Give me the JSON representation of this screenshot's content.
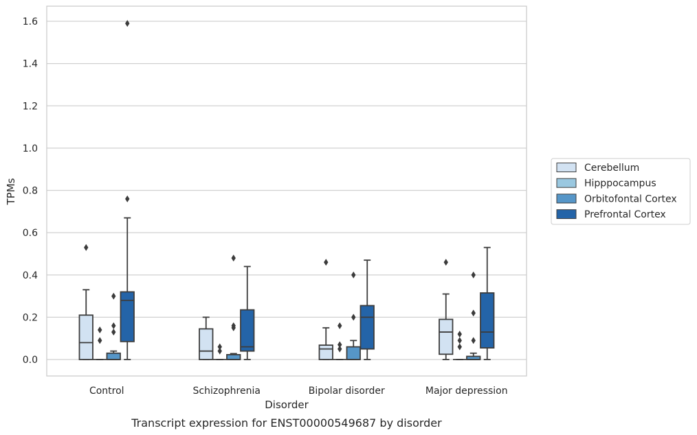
{
  "caption": "Transcript expression for ENST00000549687 by disorder",
  "chart_data": {
    "type": "box",
    "title": "",
    "xlabel": "Disorder",
    "ylabel": "TPMs",
    "ylim": [
      -0.08,
      1.67
    ],
    "yticks": [
      0.0,
      0.2,
      0.4,
      0.6,
      0.8,
      1.0,
      1.2,
      1.4,
      1.6
    ],
    "ytick_labels": [
      "0.0",
      "0.2",
      "0.4",
      "0.6",
      "0.8",
      "1.0",
      "1.2",
      "1.4",
      "1.6"
    ],
    "grid": "horizontal",
    "legend_position": "right",
    "categories": [
      "Control",
      "Schizophrenia",
      "Bipolar disorder",
      "Major depression"
    ],
    "series": [
      {
        "name": "Cerebellum",
        "color": "#d2e2f2",
        "boxes": [
          {
            "whislo": 0.0,
            "q1": 0.0,
            "med": 0.08,
            "q3": 0.21,
            "whishi": 0.33,
            "fliers": [
              0.53
            ]
          },
          {
            "whislo": 0.0,
            "q1": 0.0,
            "med": 0.04,
            "q3": 0.145,
            "whishi": 0.2,
            "fliers": []
          },
          {
            "whislo": 0.0,
            "q1": 0.0,
            "med": 0.05,
            "q3": 0.068,
            "whishi": 0.15,
            "fliers": [
              0.46
            ]
          },
          {
            "whislo": 0.0,
            "q1": 0.025,
            "med": 0.13,
            "q3": 0.19,
            "whishi": 0.31,
            "fliers": [
              0.46
            ]
          }
        ]
      },
      {
        "name": "Hipppocampus",
        "color": "#9ac8e0",
        "boxes": [
          {
            "whislo": 0.0,
            "q1": 0.0,
            "med": 0.0,
            "q3": 0.0,
            "whishi": 0.0,
            "fliers": [
              0.09,
              0.14
            ]
          },
          {
            "whislo": 0.0,
            "q1": 0.0,
            "med": 0.0,
            "q3": 0.0,
            "whishi": 0.0,
            "fliers": [
              0.04,
              0.06
            ]
          },
          {
            "whislo": 0.0,
            "q1": 0.0,
            "med": 0.0,
            "q3": 0.0,
            "whishi": 0.0,
            "fliers": [
              0.05,
              0.07,
              0.16
            ]
          },
          {
            "whislo": 0.0,
            "q1": 0.0,
            "med": 0.0,
            "q3": 0.0,
            "whishi": 0.0,
            "fliers": [
              0.06,
              0.09,
              0.12
            ]
          }
        ]
      },
      {
        "name": "Orbitofontal Cortex",
        "color": "#5696c8",
        "boxes": [
          {
            "whislo": 0.0,
            "q1": 0.0,
            "med": 0.0,
            "q3": 0.03,
            "whishi": 0.04,
            "fliers": [
              0.13,
              0.16,
              0.3
            ]
          },
          {
            "whislo": 0.0,
            "q1": 0.0,
            "med": 0.0,
            "q3": 0.023,
            "whishi": 0.028,
            "fliers": [
              0.15,
              0.16,
              0.48
            ]
          },
          {
            "whislo": 0.0,
            "q1": 0.0,
            "med": 0.0,
            "q3": 0.06,
            "whishi": 0.09,
            "fliers": [
              0.2,
              0.4
            ]
          },
          {
            "whislo": 0.0,
            "q1": 0.0,
            "med": 0.0,
            "q3": 0.015,
            "whishi": 0.03,
            "fliers": [
              0.09,
              0.22,
              0.4
            ]
          }
        ]
      },
      {
        "name": "Prefrontal Cortex",
        "color": "#2464a8",
        "boxes": [
          {
            "whislo": 0.0,
            "q1": 0.085,
            "med": 0.28,
            "q3": 0.32,
            "whishi": 0.67,
            "fliers": [
              0.76,
              1.59
            ]
          },
          {
            "whislo": 0.0,
            "q1": 0.04,
            "med": 0.06,
            "q3": 0.235,
            "whishi": 0.44,
            "fliers": []
          },
          {
            "whislo": 0.0,
            "q1": 0.05,
            "med": 0.2,
            "q3": 0.255,
            "whishi": 0.47,
            "fliers": []
          },
          {
            "whislo": 0.0,
            "q1": 0.055,
            "med": 0.13,
            "q3": 0.315,
            "whishi": 0.53,
            "fliers": []
          }
        ]
      }
    ]
  }
}
